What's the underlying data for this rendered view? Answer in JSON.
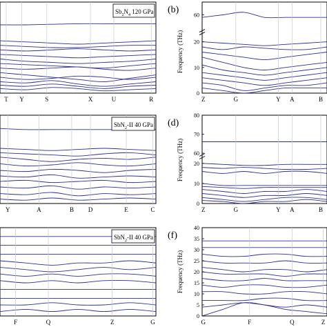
{
  "line_color": "#2e2e8a",
  "grid_color": "#c8c8c8",
  "chart_data": [
    {
      "panel": "a",
      "type": "line",
      "title": "",
      "ylabel": "",
      "panel_letter": "",
      "annotation_lines": [
        "Sb2N4 120 GPa"
      ],
      "annotation_text": "Sb",
      "annotation_sub1": "2",
      "annotation_mid": "N",
      "annotation_sub2": "4",
      "annotation_tail": " 120 GPa",
      "ticks_x": [
        "T",
        "Y",
        "S",
        "X",
        "U",
        "R"
      ],
      "ylim": [
        0,
        80
      ],
      "broken_axis": false,
      "series": [
        {
          "values": [
            60,
            60,
            60.5,
            61,
            61,
            61,
            61
          ]
        },
        {
          "values": [
            46,
            45,
            44,
            43,
            44,
            45,
            46
          ]
        },
        {
          "values": [
            42,
            41,
            40,
            40,
            41,
            42,
            42
          ]
        },
        {
          "values": [
            38,
            37,
            38,
            39,
            38,
            37,
            38
          ]
        },
        {
          "values": [
            34,
            33,
            32,
            31,
            32,
            33,
            34
          ]
        },
        {
          "values": [
            30,
            28,
            27,
            26,
            27,
            28,
            30
          ]
        },
        {
          "values": [
            26,
            25,
            24,
            23,
            22,
            24,
            26
          ]
        },
        {
          "values": [
            22,
            21,
            22,
            23,
            21,
            20,
            22
          ]
        },
        {
          "values": [
            18,
            16,
            14,
            12,
            10,
            13,
            16
          ]
        },
        {
          "values": [
            14,
            12,
            13,
            15,
            14,
            12,
            14
          ]
        },
        {
          "values": [
            10,
            9,
            11,
            8,
            6,
            8,
            10
          ]
        },
        {
          "values": [
            7,
            6,
            8,
            6,
            4,
            6,
            7
          ]
        },
        {
          "values": [
            4,
            3,
            5,
            4,
            2,
            3,
            4
          ]
        }
      ]
    },
    {
      "panel": "b",
      "type": "line",
      "title": "",
      "ylabel": "Frequency (THz)",
      "panel_letter": "(b)",
      "annotation_lines": [],
      "ticks_x": [
        "Z",
        "G",
        "Y",
        "A",
        "B"
      ],
      "yticks": [
        0,
        10,
        20,
        60
      ],
      "ylim": [
        0,
        65
      ],
      "broken_axis": true,
      "series": [
        {
          "values": [
            59,
            60,
            61,
            59,
            59,
            59,
            59
          ]
        },
        {
          "values": [
            20,
            19.5,
            19,
            18.5,
            19,
            19.5,
            20
          ]
        },
        {
          "values": [
            18,
            17,
            18,
            17.5,
            17,
            17,
            18
          ]
        },
        {
          "values": [
            16,
            15,
            14,
            13,
            14,
            15,
            16
          ]
        },
        {
          "values": [
            14,
            12,
            10,
            9,
            10,
            11,
            12
          ]
        },
        {
          "values": [
            11,
            9,
            8,
            7,
            8,
            9,
            10
          ]
        },
        {
          "values": [
            8,
            7,
            6,
            5,
            6,
            7,
            8
          ]
        },
        {
          "values": [
            6,
            5,
            4,
            3,
            4,
            5,
            6
          ]
        },
        {
          "values": [
            4,
            3,
            1,
            2,
            3,
            3,
            4
          ]
        },
        {
          "values": [
            2,
            1,
            0,
            1,
            2,
            2,
            2
          ]
        }
      ]
    },
    {
      "panel": "c",
      "type": "line",
      "title": "",
      "ylabel": "",
      "panel_letter": "",
      "annotation_text": "SbN",
      "annotation_sub1": "2",
      "annotation_tail": "-II 40 GPa",
      "ticks_x": [
        "Y",
        "A",
        "B",
        "D",
        "E",
        "C"
      ],
      "ylim": [
        0,
        80
      ],
      "broken_axis": false,
      "series": [
        {
          "values": [
            68,
            67,
            67,
            67,
            67,
            67,
            67
          ]
        },
        {
          "values": [
            50,
            49,
            48,
            49,
            50,
            49,
            48
          ]
        },
        {
          "values": [
            46,
            45,
            44,
            43,
            45,
            46,
            44
          ]
        },
        {
          "values": [
            42,
            40,
            38,
            40,
            41,
            40,
            42
          ]
        },
        {
          "values": [
            36,
            34,
            35,
            37,
            35,
            34,
            36
          ]
        },
        {
          "values": [
            30,
            29,
            31,
            30,
            28,
            30,
            31
          ]
        },
        {
          "values": [
            25,
            24,
            26,
            23,
            24,
            25,
            24
          ]
        },
        {
          "values": [
            20,
            21,
            19,
            20,
            21,
            19,
            20
          ]
        },
        {
          "values": [
            15,
            14,
            16,
            13,
            15,
            14,
            15
          ]
        },
        {
          "values": [
            9,
            8,
            10,
            7,
            9,
            8,
            9
          ]
        },
        {
          "values": [
            4,
            3,
            5,
            3,
            4,
            5,
            4
          ]
        }
      ]
    },
    {
      "panel": "d",
      "type": "line",
      "title": "",
      "ylabel": "Frequency (THz)",
      "panel_letter": "(d)",
      "ticks_x": [
        "Z",
        "G",
        "Y",
        "A",
        "B"
      ],
      "yticks": [
        0,
        10,
        20,
        60,
        70,
        80
      ],
      "ylim": [
        0,
        80
      ],
      "broken_axis": true,
      "series": [
        {
          "values": [
            66,
            66,
            66,
            66,
            66,
            66,
            66
          ]
        },
        {
          "values": [
            20,
            19.5,
            19,
            19,
            19.5,
            19.5,
            19.5
          ]
        },
        {
          "values": [
            18,
            17.5,
            18,
            17.5,
            17,
            17,
            17.5
          ]
        },
        {
          "values": [
            16,
            15,
            16,
            15,
            16,
            16,
            15
          ]
        },
        {
          "values": [
            10,
            9,
            9,
            9,
            9,
            9,
            9
          ]
        },
        {
          "values": [
            8.5,
            8,
            7.5,
            8,
            8,
            8,
            8
          ]
        },
        {
          "values": [
            7,
            6,
            5,
            6,
            6,
            7,
            6
          ]
        },
        {
          "values": [
            5,
            4,
            3,
            4,
            4,
            5,
            4
          ]
        },
        {
          "values": [
            3,
            2,
            1,
            2,
            3,
            3,
            2
          ]
        },
        {
          "values": [
            1.5,
            1,
            0,
            1,
            1,
            2,
            1
          ]
        }
      ]
    },
    {
      "panel": "e",
      "type": "line",
      "title": "",
      "ylabel": "",
      "panel_letter": "",
      "annotation_text": "SbN",
      "annotation_sub1": "2",
      "annotation_tail": "-II 40 GPa",
      "ticks_x": [
        "F",
        "Q",
        "Z",
        "G"
      ],
      "ylim": [
        0,
        40
      ],
      "broken_axis": false,
      "series": [
        {
          "values": [
            36,
            36,
            36,
            36,
            36,
            36,
            36
          ]
        },
        {
          "values": [
            32,
            32,
            32,
            32,
            32,
            32,
            32
          ]
        },
        {
          "values": [
            28,
            28,
            28,
            28,
            28,
            28,
            28
          ]
        },
        {
          "values": [
            25,
            24,
            23,
            24,
            24,
            25,
            24
          ]
        },
        {
          "values": [
            22,
            21,
            20,
            21,
            22,
            21,
            22
          ]
        },
        {
          "values": [
            19,
            18,
            19,
            18,
            19,
            19,
            18
          ]
        },
        {
          "values": [
            16,
            15,
            16,
            15,
            16,
            16,
            15
          ]
        },
        {
          "values": [
            12,
            12,
            12,
            12,
            12,
            12,
            12
          ]
        },
        {
          "values": [
            8,
            8,
            8,
            8,
            8,
            8,
            8
          ]
        },
        {
          "values": [
            5,
            5,
            6,
            5,
            5,
            6,
            5
          ]
        },
        {
          "values": [
            2,
            3,
            2,
            3,
            2,
            3,
            2
          ]
        }
      ]
    },
    {
      "panel": "f",
      "type": "line",
      "title": "",
      "ylabel": "Frequency (THz)",
      "panel_letter": "(f)",
      "ticks_x": [
        "G",
        "F",
        "Q",
        "Z"
      ],
      "yticks": [
        0,
        5,
        10,
        15,
        20,
        25,
        30,
        35,
        40
      ],
      "ylim": [
        0,
        40
      ],
      "broken_axis": false,
      "series": [
        {
          "values": [
            34,
            34,
            34,
            34,
            34,
            34,
            34
          ]
        },
        {
          "values": [
            31,
            31,
            31,
            31,
            31,
            31,
            31
          ]
        },
        {
          "values": [
            28,
            27,
            27,
            28,
            28,
            27,
            27
          ]
        },
        {
          "values": [
            25,
            24,
            24,
            24,
            25,
            24,
            24
          ]
        },
        {
          "values": [
            22,
            21,
            20,
            21,
            21,
            20,
            21
          ]
        },
        {
          "values": [
            20,
            19,
            19,
            19,
            18,
            19,
            19
          ]
        },
        {
          "values": [
            17,
            16,
            16,
            17,
            16,
            16,
            16
          ]
        },
        {
          "values": [
            14,
            13,
            14,
            14,
            13,
            13,
            14
          ]
        },
        {
          "values": [
            11,
            11,
            10,
            10,
            11,
            11,
            10
          ]
        },
        {
          "values": [
            7,
            7,
            7,
            8,
            8,
            7,
            7
          ]
        },
        {
          "values": [
            4,
            5,
            6,
            5,
            4,
            5,
            4
          ]
        },
        {
          "values": [
            0,
            3,
            6,
            5,
            3,
            2,
            1
          ]
        }
      ]
    }
  ]
}
